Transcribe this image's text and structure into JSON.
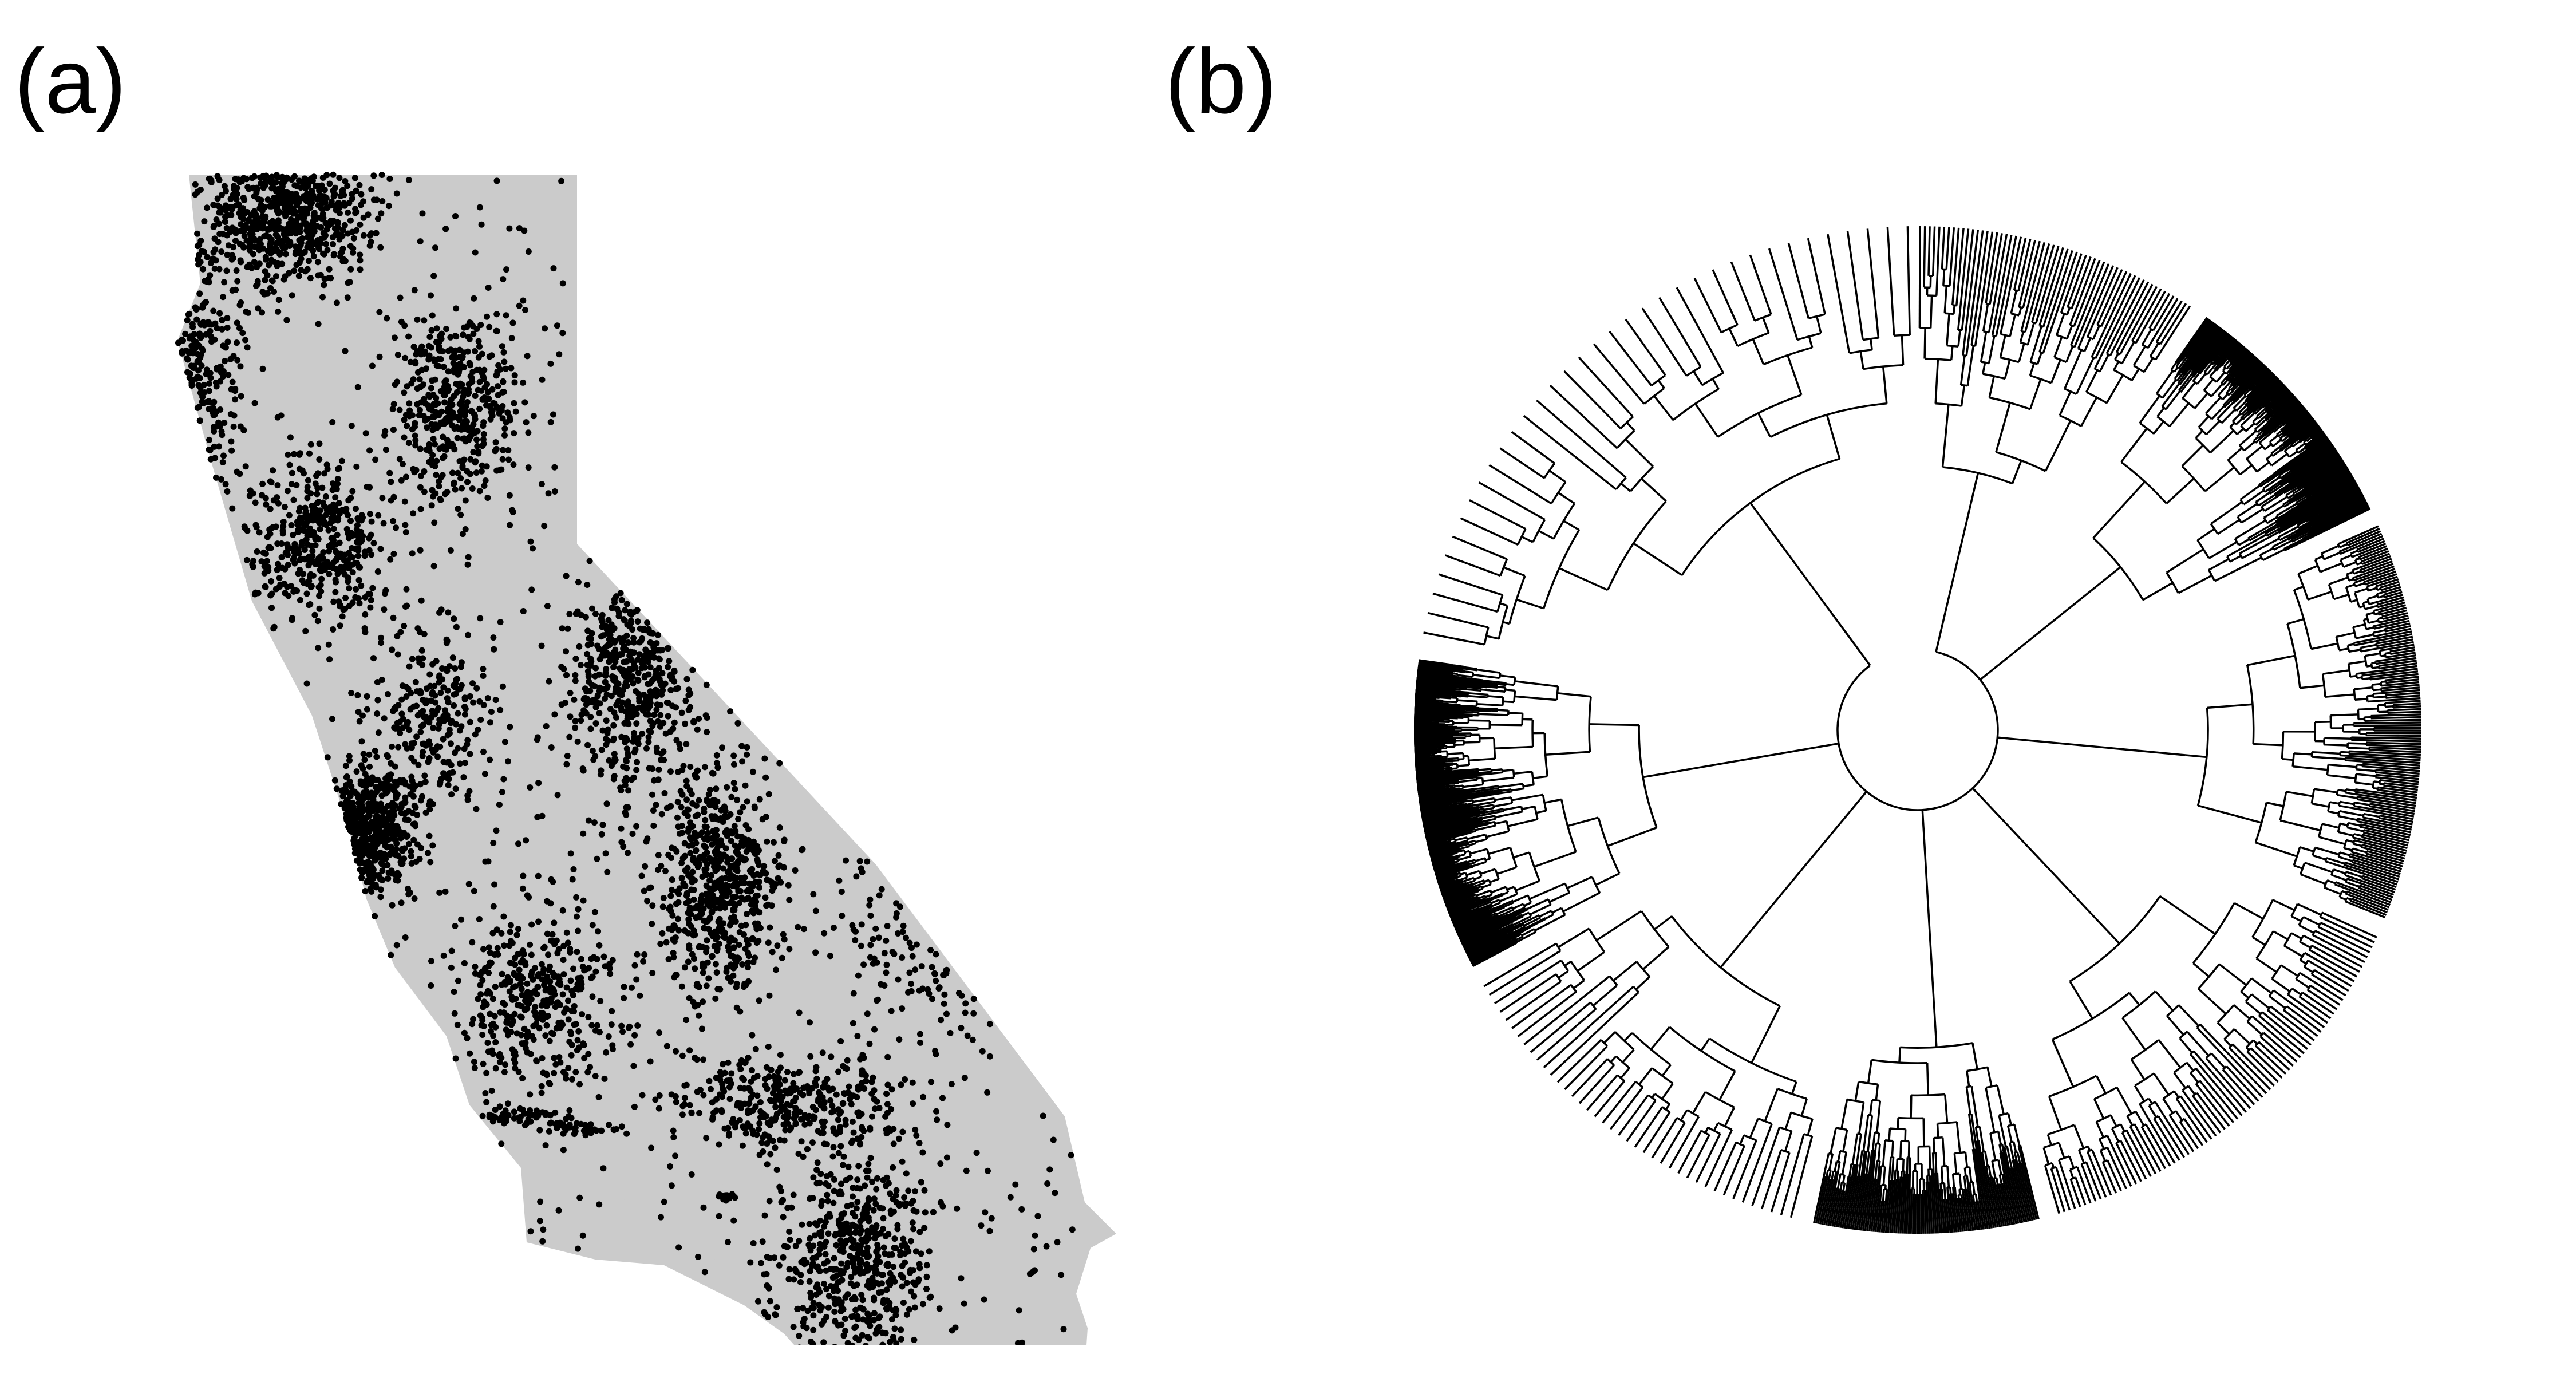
{
  "panels": {
    "a": {
      "label": "(a)"
    },
    "b": {
      "label": "(b)"
    }
  },
  "colors": {
    "land": "#cbcbcb",
    "points": "#000000",
    "tree_lines": "#000000",
    "background": "#ffffff"
  }
}
